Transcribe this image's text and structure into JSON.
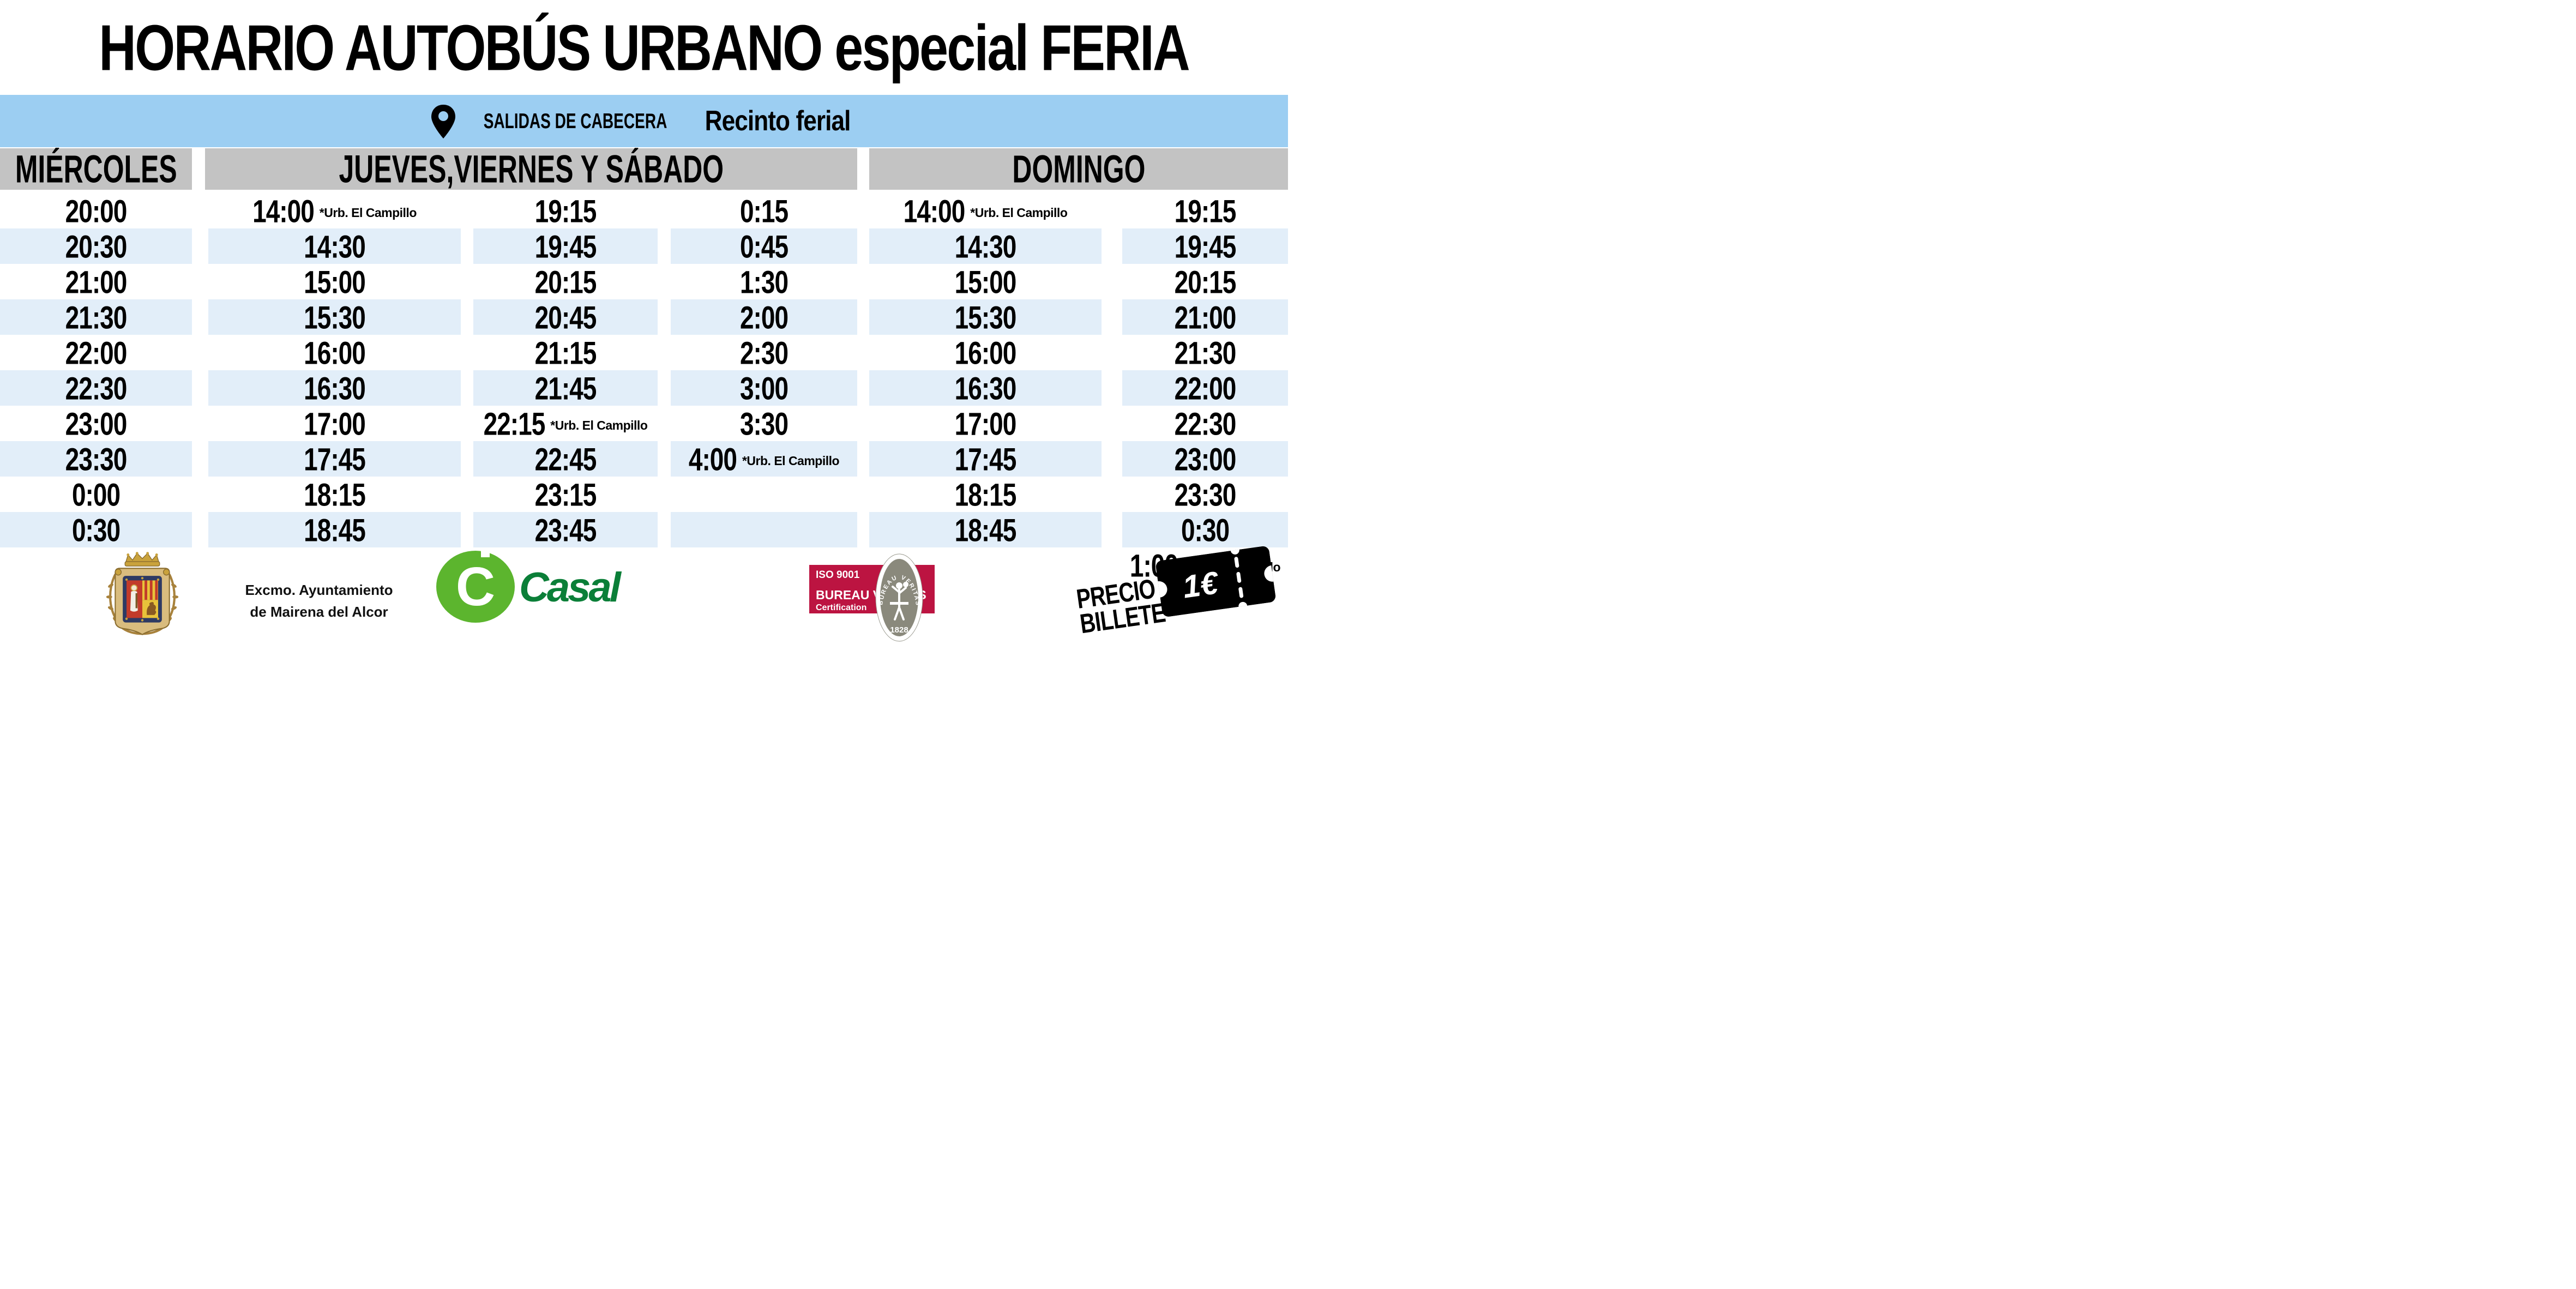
{
  "title": "HORARIO AUTOBÚS URBANO especial FERIA",
  "location_banner": {
    "pin_icon": "map-pin-icon",
    "label": "SALIDAS DE CABECERA",
    "place": "Recinto ferial"
  },
  "schedule": {
    "groups": [
      {
        "header": "MIÉRCOLES",
        "columns": [
          {
            "times": [
              "20:00",
              "20:30",
              "21:00",
              "21:30",
              "22:00",
              "22:30",
              "23:00",
              "23:30",
              "0:00",
              "0:30"
            ],
            "notes": {}
          }
        ]
      },
      {
        "header": "JUEVES,VIERNES Y SÁBADO",
        "columns": [
          {
            "times": [
              "14:00",
              "14:30",
              "15:00",
              "15:30",
              "16:00",
              "16:30",
              "17:00",
              "17:45",
              "18:15",
              "18:45"
            ],
            "notes": {
              "0": "*Urb. El Campillo"
            }
          },
          {
            "times": [
              "19:15",
              "19:45",
              "20:15",
              "20:45",
              "21:15",
              "21:45",
              "22:15",
              "22:45",
              "23:15",
              "23:45"
            ],
            "notes": {
              "6": "*Urb. El Campillo"
            }
          },
          {
            "times": [
              "0:15",
              "0:45",
              "1:30",
              "2:00",
              "2:30",
              "3:00",
              "3:30",
              "4:00",
              "",
              ""
            ],
            "notes": {
              "7": "*Urb. El Campillo"
            }
          }
        ]
      },
      {
        "header": "DOMINGO",
        "columns": [
          {
            "times": [
              "14:00",
              "14:30",
              "15:00",
              "15:30",
              "16:00",
              "16:30",
              "17:00",
              "17:45",
              "18:15",
              "18:45"
            ],
            "notes": {
              "0": "*Urb. El Campillo"
            }
          },
          {
            "times": [
              "19:15",
              "19:45",
              "20:15",
              "21:00",
              "21:30",
              "22:00",
              "22:30",
              "23:00",
              "23:30",
              "0:30"
            ],
            "notes": {},
            "extra_row": {
              "time": "1:00",
              "note": "*Urb. El Campillo"
            }
          }
        ]
      }
    ]
  },
  "footer": {
    "council": {
      "crest_icon": "mairena-coat-of-arms",
      "name_line1": "Excmo. Ayuntamiento",
      "name_line2": "de Mairena del Alcor"
    },
    "operator": {
      "logo_icon": "casal-logo",
      "monogram": "C",
      "name": "Casal"
    },
    "certification": {
      "iso": "ISO 9001",
      "org": "BUREAU VERITAS",
      "cert": "Certification",
      "medallion_top": "BUREAU VERITAS",
      "medallion_year": "1828"
    },
    "price": {
      "label_line1": "PRECIO",
      "label_line2": "BILLETE",
      "value": "1€",
      "ticket_icon": "ticket-icon"
    }
  },
  "colors": {
    "banner_blue": "#9CCEF2",
    "stripe_blue": "#E2EEF9",
    "header_gray": "#C3C3C3",
    "bv_red": "#BC1441",
    "bv_olive": "#8A897C",
    "casal_green": "#5CB52E",
    "casal_dark_green": "#0B7F38"
  }
}
